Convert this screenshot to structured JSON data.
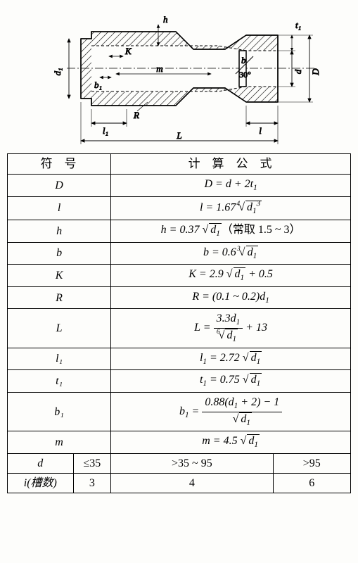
{
  "diagram": {
    "labels": {
      "d1": "d₁",
      "h": "h",
      "K": "K",
      "b1": "b₁",
      "m": "m",
      "R": "R",
      "l1": "l₁",
      "L": "L",
      "l": "l",
      "angle": "30°",
      "b": "b",
      "d": "d",
      "D": "D",
      "t1": "t₁"
    },
    "hatch_spacing": 6
  },
  "headers": {
    "symbol": "符号",
    "formula": "计算公式"
  },
  "rows": [
    {
      "sym": "D",
      "formula_html": "<i>D</i> = <i>d</i> + 2<i>t</i><sub>1</sub>"
    },
    {
      "sym": "l",
      "formula_html": "<i>l</i> = 1.67 <span class='sqrt'><span class='surd'><span class='deg'>4</span>√</span><span class='radix'><i>d</i><sub>1</sub><sup style='font-size:0.7em'>3</sup></span></span>"
    },
    {
      "sym": "h",
      "formula_html": "<i>h</i> = 0.37 <span class='sqrt'><span class='surd'>√</span><span class='radix'><i>d</i><sub>1</sub></span></span><span class='note'>（常取 1.5 ~ 3）</span>"
    },
    {
      "sym": "b",
      "formula_html": "<i>b</i> = 0.6 <span class='sqrt'><span class='surd'><span class='deg'>3</span>√</span><span class='radix'><i>d</i><sub>1</sub></span></span>"
    },
    {
      "sym": "K",
      "formula_html": "<i>K</i> = 2.9 <span class='sqrt'><span class='surd'>√</span><span class='radix'><i>d</i><sub>1</sub></span></span> + 0.5"
    },
    {
      "sym": "R",
      "formula_html": "<i>R</i> = (0.1 ~ 0.2)<i>d</i><sub>1</sub>"
    },
    {
      "sym": "L",
      "formula_html": "<i>L</i> = <span class='frac'><span class='num'>3.3<i>d</i><sub>1</sub></span><span class='den'><span class='sqrt'><span class='surd'><span class='deg'>6</span>√</span><span class='radix'><i>d</i><sub>1</sub></span></span></span></span> + 13"
    },
    {
      "sym": "l₁",
      "formula_html": "<i>l</i><sub>1</sub> = 2.72 <span class='sqrt'><span class='surd'>√</span><span class='radix'><i>d</i><sub>1</sub></span></span>"
    },
    {
      "sym": "t₁",
      "formula_html": "<i>t</i><sub>1</sub> = 0.75 <span class='sqrt'><span class='surd'>√</span><span class='radix'><i>d</i><sub>1</sub></span></span>"
    },
    {
      "sym": "b₁",
      "formula_html": "<i>b</i><sub>1</sub> = <span class='frac'><span class='num'>0.88(<i>d</i><sub>1</sub> + 2) − 1</span><span class='den'><span class='sqrt'><span class='surd'>√</span><span class='radix'><i>d</i><sub>1</sub></span></span></span></span>"
    },
    {
      "sym": "m",
      "formula_html": "<i>m</i> = 4.5 <span class='sqrt'><span class='surd'>√</span><span class='radix'><i>d</i><sub>1</sub></span></span>"
    }
  ],
  "footer": {
    "row_d": {
      "label": "d",
      "c1": "≤35",
      "c2": ">35 ~ 95",
      "c3": ">95"
    },
    "row_i": {
      "label": "i(槽数)",
      "c1": "3",
      "c2": "4",
      "c3": "6"
    }
  }
}
